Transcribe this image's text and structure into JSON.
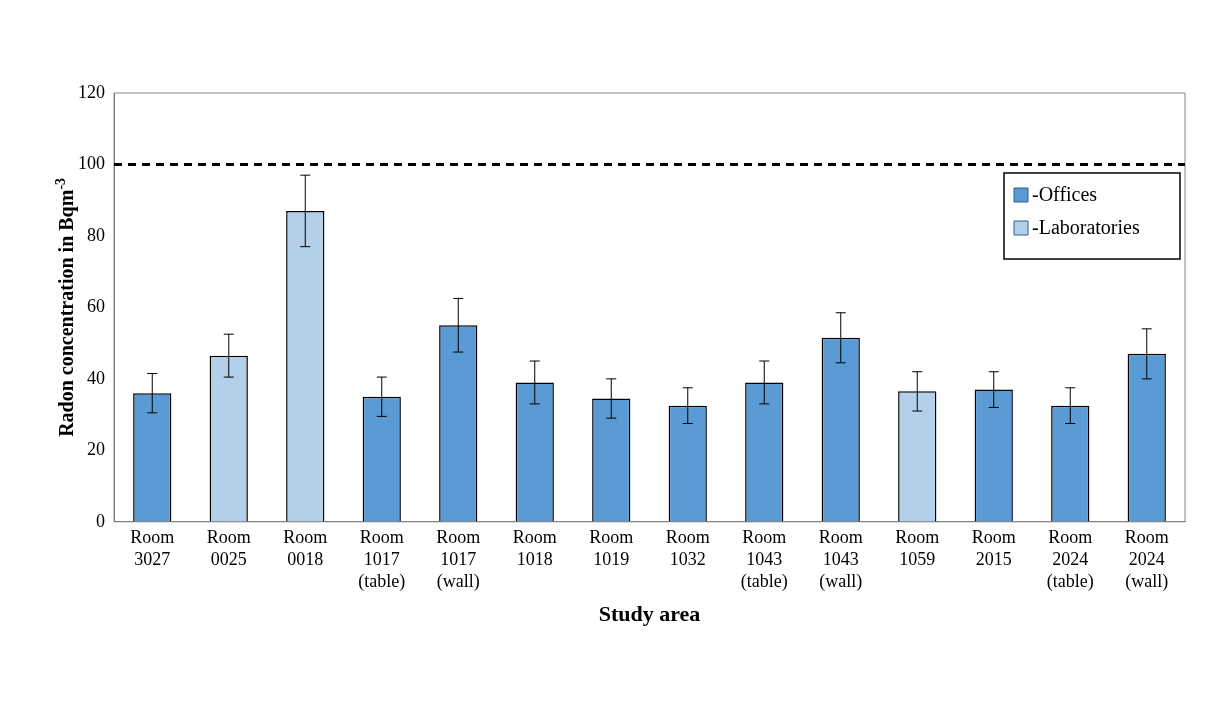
{
  "chart_data": {
    "type": "bar",
    "xlabel": "Study area",
    "ylabel": "Radon concentration in Bqm$^{-3}$",
    "categories": [
      "Room 3027",
      "Room 0025",
      "Room 0018",
      "Room 1017 (table)",
      "Room 1017 (wall)",
      "Room 1018",
      "Room 1019",
      "Room 1032",
      "Room 1043 (table)",
      "Room 1043 (wall)",
      "Room 1059",
      "Room 2015",
      "Room 2024 (table)",
      "Room 2024 (wall)"
    ],
    "series": [
      {
        "name": "-Offices",
        "color": "#5b9bd5",
        "values": [
          36,
          null,
          null,
          35,
          55,
          39,
          34.5,
          32.5,
          39,
          51.5,
          null,
          37,
          32.5,
          47
        ],
        "errors": [
          5.5,
          null,
          null,
          5.5,
          7.5,
          6,
          5.5,
          5,
          6,
          7,
          null,
          5,
          5,
          7
        ]
      },
      {
        "name": "-Laboratories",
        "color": "#b4cfe9",
        "values": [
          null,
          46.5,
          87,
          null,
          null,
          null,
          null,
          null,
          null,
          null,
          36.5,
          null,
          null,
          null
        ],
        "errors": [
          null,
          6,
          10,
          null,
          null,
          null,
          null,
          null,
          null,
          null,
          5.5,
          null,
          null,
          null
        ]
      }
    ],
    "ylim": [
      0,
      120
    ],
    "yticks": [
      0,
      20,
      40,
      60,
      80,
      100,
      120
    ],
    "grid": false,
    "legend": "top right",
    "ref_lines": [
      {
        "axis": "y",
        "value": 100,
        "color": "#000000",
        "line_style": "dashed"
      }
    ]
  }
}
